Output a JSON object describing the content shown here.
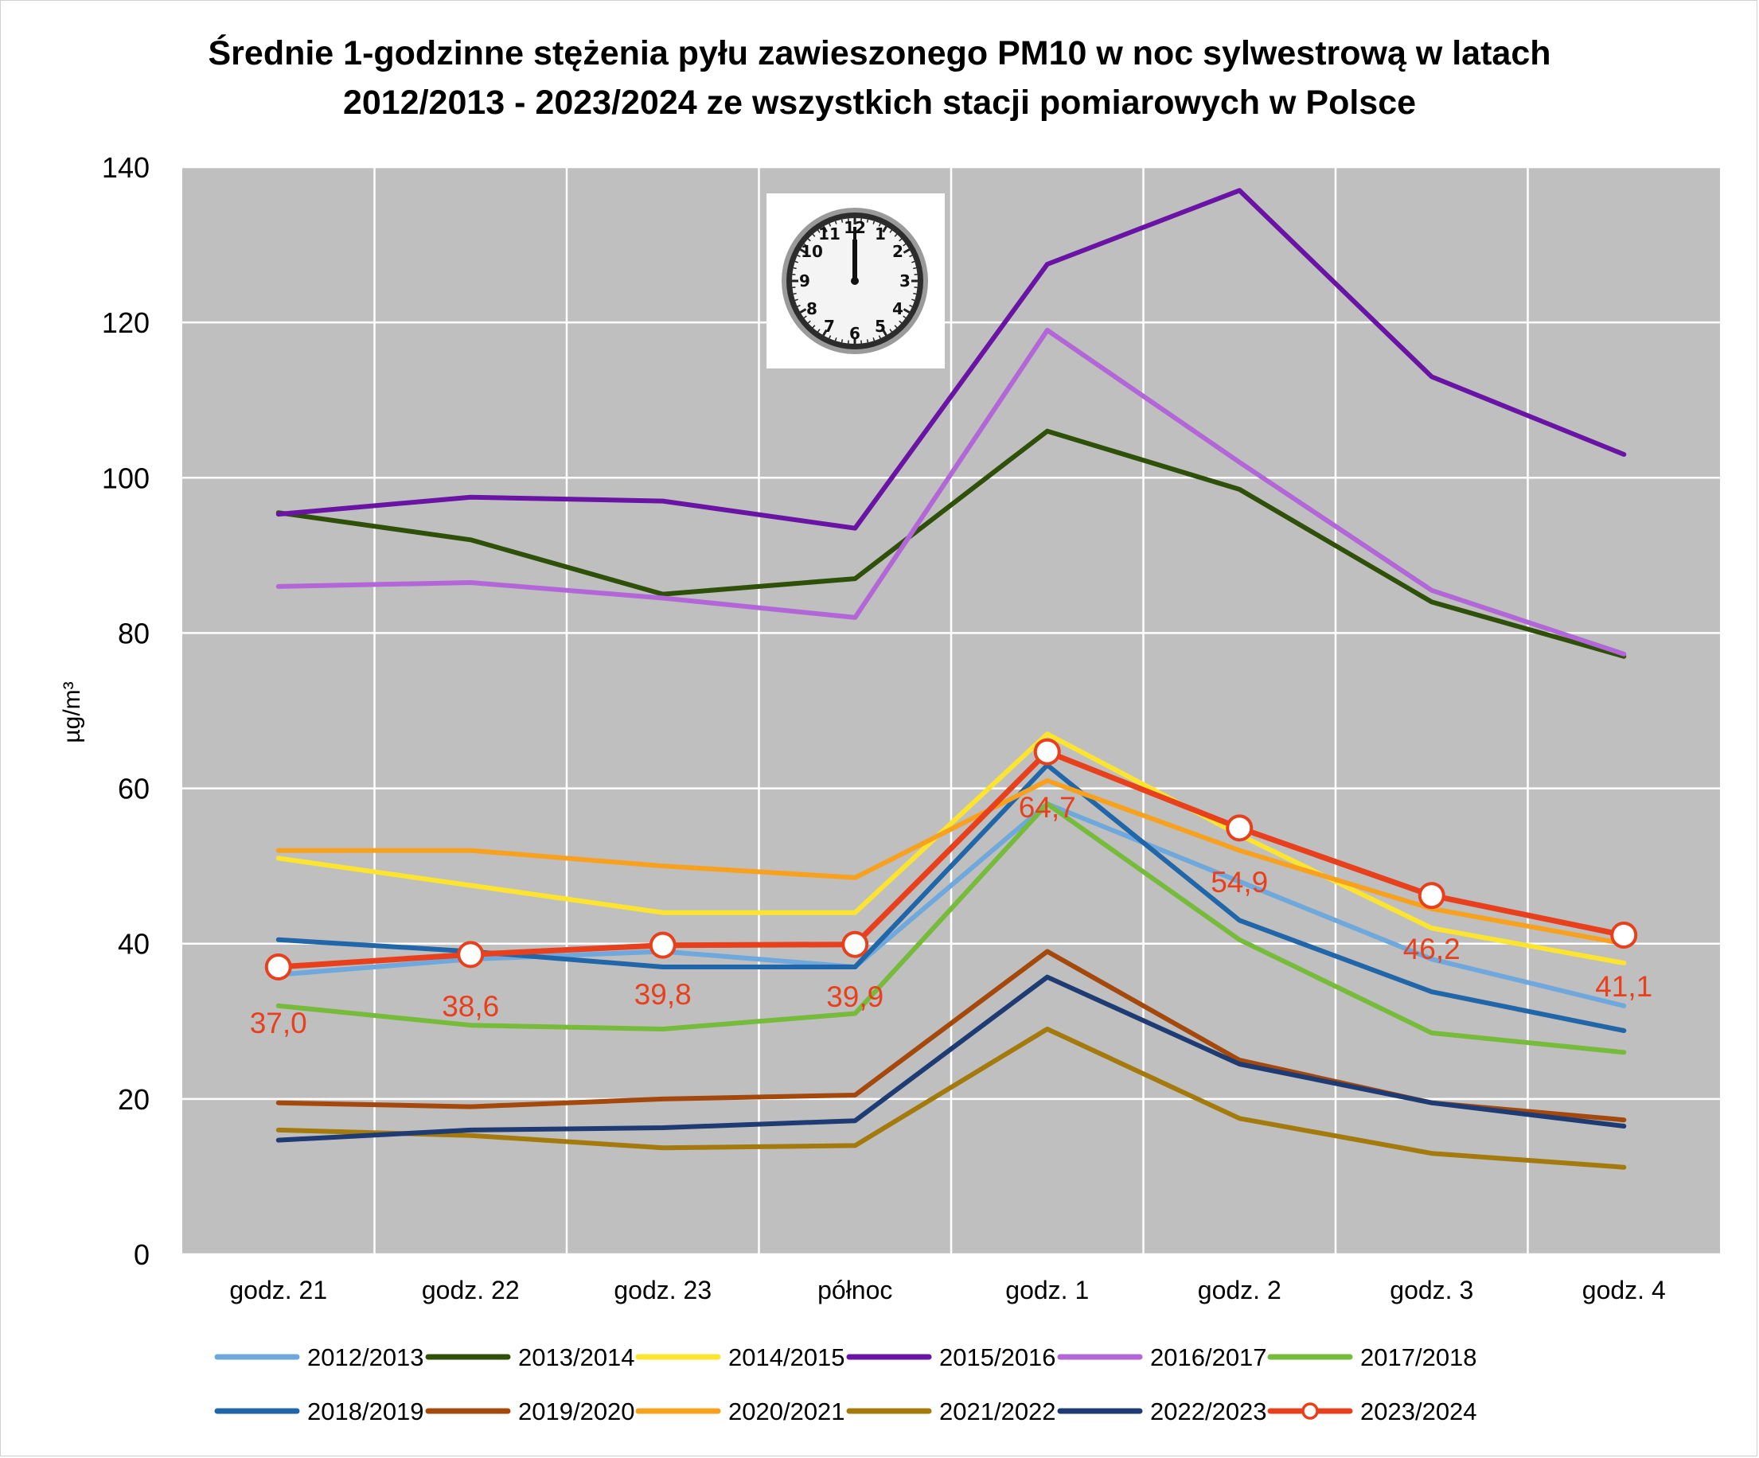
{
  "chart_data": {
    "type": "line",
    "title_line1": "Średnie 1-godzinne stężenia pyłu zawieszonego PM10 w noc sylwestrową w latach",
    "title_line2": "2012/2013 - 2023/2024 ze wszystkich stacji pomiarowych w Polsce",
    "ylabel": "µg/m³",
    "xlabel": "",
    "ylim": [
      0,
      140
    ],
    "yticks": [
      0,
      20,
      40,
      60,
      80,
      100,
      120,
      140
    ],
    "grid": true,
    "legend_position": "bottom",
    "categories": [
      "godz. 21",
      "godz. 22",
      "godz. 23",
      "północ",
      "godz. 1",
      "godz. 2",
      "godz. 3",
      "godz. 4"
    ],
    "series": [
      {
        "name": "2012/2013",
        "color": "#6fa8dc",
        "values": [
          36,
          38,
          39,
          37,
          58,
          48,
          38,
          32
        ]
      },
      {
        "name": "2013/2014",
        "color": "#2e5009",
        "values": [
          95.5,
          92,
          85,
          87,
          106,
          98.5,
          84,
          77
        ]
      },
      {
        "name": "2014/2015",
        "color": "#fde52f",
        "values": [
          51,
          47.5,
          44,
          44,
          67,
          54,
          42,
          37.5
        ]
      },
      {
        "name": "2015/2016",
        "color": "#6a14a6",
        "values": [
          95.3,
          97.5,
          97,
          93.5,
          127.5,
          137,
          113,
          103
        ]
      },
      {
        "name": "2016/2017",
        "color": "#b266d8",
        "values": [
          86,
          86.5,
          84.5,
          82,
          119,
          102,
          85.5,
          77.3
        ]
      },
      {
        "name": "2017/2018",
        "color": "#76bb3a",
        "values": [
          32,
          29.5,
          29,
          31,
          58,
          40.5,
          28.5,
          26
        ]
      },
      {
        "name": "2018/2019",
        "color": "#2166a9",
        "values": [
          40.5,
          39,
          37,
          37,
          63,
          43,
          33.8,
          28.8
        ]
      },
      {
        "name": "2019/2020",
        "color": "#a4480c",
        "values": [
          19.5,
          19,
          20,
          20.5,
          39,
          25,
          19.5,
          17.3
        ]
      },
      {
        "name": "2020/2021",
        "color": "#f8a11f",
        "values": [
          52,
          52,
          50,
          48.5,
          61,
          52,
          44.5,
          40
        ]
      },
      {
        "name": "2021/2022",
        "color": "#a37a0b",
        "values": [
          16,
          15.3,
          13.7,
          14,
          29,
          17.5,
          13,
          11.2
        ]
      },
      {
        "name": "2022/2023",
        "color": "#1f3b74",
        "values": [
          14.7,
          16,
          16.3,
          17.2,
          35.7,
          24.5,
          19.5,
          16.5
        ]
      },
      {
        "name": "2023/2024",
        "color": "#e8401c",
        "values": [
          37.0,
          38.6,
          39.8,
          39.9,
          64.7,
          54.9,
          46.2,
          41.1
        ],
        "data_labels": [
          "37,0",
          "38,6",
          "39,8",
          "39,9",
          "64,7",
          "54,9",
          "46,2",
          "41,1"
        ],
        "markers": true
      }
    ],
    "annotation_icon": "wall-clock-icon"
  }
}
